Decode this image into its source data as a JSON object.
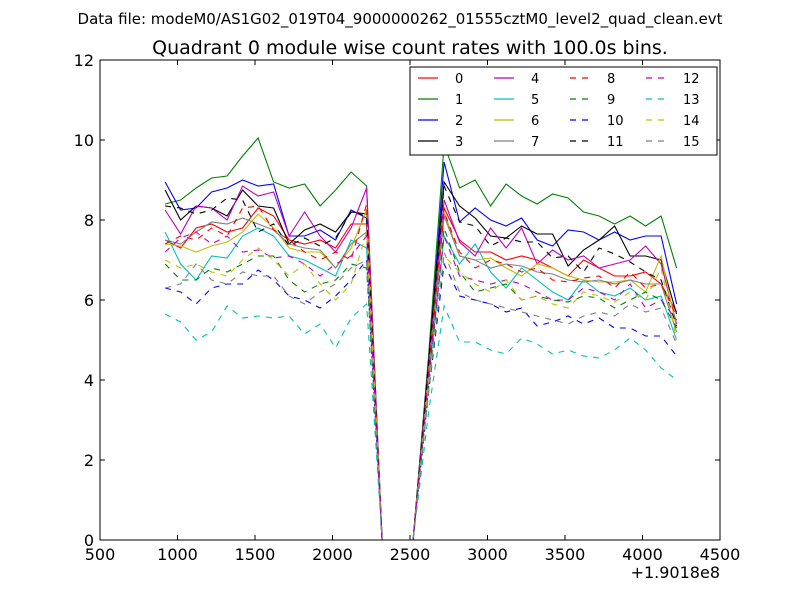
{
  "suptitle": "Data file: modeM0/AS1G02_019T04_9000000262_01555cztM0_level2_quad_clean.evt",
  "chart_data": {
    "type": "line",
    "title": "Quadrant 0 module wise count rates with 100.0s bins.",
    "xlabel": "",
    "ylabel": "",
    "x_offset_label": "+1.9018e8",
    "xlim": [
      500,
      4500
    ],
    "ylim": [
      0,
      12
    ],
    "xticks": [
      500,
      1000,
      1500,
      2000,
      2500,
      3000,
      3500,
      4000,
      4500
    ],
    "yticks": [
      0,
      2,
      4,
      6,
      8,
      10,
      12
    ],
    "grid": false,
    "legend": {
      "placement": "top-right",
      "columns": 4
    },
    "x": [
      920,
      1020,
      1120,
      1220,
      1320,
      1420,
      1520,
      1620,
      1720,
      1820,
      1920,
      2020,
      2120,
      2220,
      2320,
      2420,
      2520,
      2620,
      2720,
      2820,
      2920,
      3020,
      3120,
      3220,
      3320,
      3420,
      3520,
      3620,
      3720,
      3820,
      3920,
      4020,
      4120,
      4220
    ],
    "series": [
      {
        "name": "0",
        "color": "#ff0000",
        "dash": "solid",
        "values": [
          7.5,
          7.3,
          7.8,
          7.9,
          7.7,
          7.8,
          8.3,
          8.1,
          7.5,
          7.4,
          7.5,
          7.3,
          7.9,
          7.9,
          0,
          0,
          0,
          4.2,
          8.3,
          7.5,
          7.2,
          7.2,
          7.0,
          7.1,
          7.0,
          6.8,
          6.6,
          7.0,
          6.8,
          6.6,
          6.6,
          6.7,
          6.4,
          5.7
        ]
      },
      {
        "name": "1",
        "color": "#008000",
        "dash": "solid",
        "values": [
          8.4,
          8.5,
          8.8,
          9.05,
          9.1,
          9.6,
          10.05,
          8.95,
          8.8,
          8.9,
          8.35,
          8.75,
          9.2,
          8.85,
          0,
          0,
          0,
          4.6,
          9.9,
          8.8,
          9.0,
          8.35,
          8.9,
          8.6,
          8.4,
          8.65,
          8.55,
          8.2,
          8.1,
          7.9,
          8.1,
          7.85,
          8.1,
          6.8
        ]
      },
      {
        "name": "2",
        "color": "#0000ff",
        "dash": "solid",
        "values": [
          8.95,
          8.25,
          8.3,
          8.7,
          8.8,
          9.0,
          8.85,
          8.9,
          7.6,
          7.6,
          7.75,
          7.5,
          8.25,
          8.05,
          0,
          0,
          0,
          4.3,
          9.45,
          7.95,
          8.3,
          8.0,
          7.85,
          8.05,
          7.5,
          7.35,
          7.75,
          7.7,
          7.5,
          7.7,
          7.5,
          7.6,
          7.6,
          5.9
        ]
      },
      {
        "name": "3",
        "color": "#000000",
        "dash": "solid",
        "values": [
          8.75,
          8.0,
          8.35,
          8.3,
          8.1,
          8.75,
          8.35,
          8.3,
          7.4,
          7.75,
          7.9,
          7.7,
          8.2,
          8.15,
          0,
          0,
          0,
          4.5,
          8.95,
          8.35,
          8.05,
          7.6,
          7.55,
          7.85,
          7.65,
          7.65,
          6.85,
          7.25,
          7.5,
          7.85,
          7.1,
          7.1,
          7.0,
          5.65
        ]
      },
      {
        "name": "4",
        "color": "#bf00bf",
        "dash": "solid",
        "values": [
          8.25,
          7.65,
          8.35,
          8.3,
          8.0,
          8.85,
          8.6,
          8.7,
          7.6,
          8.2,
          7.6,
          7.2,
          7.8,
          8.8,
          0,
          0,
          0,
          4.4,
          8.5,
          7.45,
          7.1,
          7.8,
          7.3,
          7.8,
          6.9,
          7.25,
          7.0,
          7.1,
          6.8,
          6.9,
          7.0,
          7.35,
          6.9,
          5.4
        ]
      },
      {
        "name": "5",
        "color": "#00bfbf",
        "dash": "solid",
        "values": [
          7.7,
          6.9,
          6.5,
          7.1,
          7.05,
          7.6,
          7.8,
          7.6,
          7.1,
          7.0,
          6.8,
          6.6,
          7.5,
          7.3,
          0,
          0,
          0,
          4.0,
          7.6,
          6.9,
          7.4,
          6.7,
          6.3,
          6.8,
          6.5,
          6.2,
          6.0,
          6.5,
          6.2,
          6.1,
          6.3,
          6.0,
          6.1,
          5.0
        ]
      },
      {
        "name": "6",
        "color": "#bfbf00",
        "dash": "solid",
        "values": [
          7.4,
          7.35,
          7.2,
          7.35,
          7.45,
          7.7,
          8.15,
          7.8,
          7.3,
          7.2,
          7.2,
          6.8,
          7.3,
          8.25,
          0,
          0,
          0,
          4.2,
          8.2,
          7.1,
          7.0,
          7.05,
          6.8,
          6.6,
          6.9,
          6.8,
          6.6,
          6.5,
          6.45,
          6.45,
          6.5,
          6.2,
          7.1,
          5.3
        ]
      },
      {
        "name": "7",
        "color": "#808080",
        "dash": "solid",
        "values": [
          7.5,
          7.4,
          7.7,
          7.95,
          7.9,
          8.05,
          7.9,
          7.75,
          7.4,
          7.3,
          7.25,
          6.8,
          7.4,
          7.7,
          0,
          0,
          0,
          4.2,
          8.1,
          7.1,
          7.0,
          6.8,
          6.9,
          6.85,
          6.7,
          6.65,
          6.5,
          6.45,
          6.5,
          6.4,
          6.5,
          6.4,
          6.4,
          5.2
        ]
      },
      {
        "name": "8",
        "color": "#ff0000",
        "dash": "dashed",
        "values": [
          7.4,
          7.6,
          7.5,
          7.8,
          7.6,
          8.3,
          8.35,
          7.75,
          7.5,
          7.2,
          7.0,
          7.2,
          7.0,
          8.4,
          0,
          0,
          0,
          4.2,
          8.2,
          7.2,
          6.8,
          7.0,
          6.9,
          6.7,
          6.8,
          6.5,
          6.45,
          6.55,
          6.6,
          6.3,
          6.7,
          6.3,
          6.4,
          5.6
        ]
      },
      {
        "name": "9",
        "color": "#008000",
        "dash": "dashed",
        "values": [
          6.9,
          6.5,
          6.5,
          6.8,
          6.7,
          6.9,
          7.1,
          7.1,
          6.5,
          6.2,
          6.4,
          6.5,
          6.9,
          6.8,
          0,
          0,
          0,
          3.8,
          7.8,
          6.7,
          6.2,
          6.3,
          6.4,
          6.0,
          6.1,
          6.0,
          5.95,
          6.1,
          6.05,
          5.8,
          6.0,
          6.2,
          6.0,
          5.3
        ]
      },
      {
        "name": "10",
        "color": "#0000ff",
        "dash": "dashed",
        "values": [
          6.3,
          6.2,
          5.9,
          6.3,
          6.4,
          6.4,
          6.75,
          6.5,
          6.1,
          6.0,
          5.8,
          6.1,
          6.5,
          7.0,
          0,
          0,
          0,
          3.7,
          6.9,
          6.1,
          6.0,
          5.9,
          5.7,
          5.8,
          5.35,
          5.45,
          5.6,
          5.4,
          5.55,
          5.3,
          5.3,
          5.1,
          5.1,
          4.6
        ]
      },
      {
        "name": "11",
        "color": "#000000",
        "dash": "dashed",
        "values": [
          8.35,
          8.3,
          8.15,
          8.25,
          8.55,
          8.5,
          7.7,
          7.9,
          7.35,
          7.55,
          7.35,
          7.55,
          8.2,
          8.1,
          0,
          0,
          0,
          4.4,
          8.85,
          7.95,
          7.85,
          7.35,
          7.55,
          7.45,
          7.45,
          7.05,
          7.1,
          6.7,
          7.3,
          7.15,
          6.95,
          6.7,
          6.5,
          5.35
        ]
      },
      {
        "name": "12",
        "color": "#bf00bf",
        "dash": "dashed",
        "values": [
          7.2,
          7.55,
          7.7,
          7.4,
          7.6,
          7.2,
          7.25,
          7.05,
          7.1,
          6.9,
          6.6,
          6.9,
          7.1,
          7.6,
          0,
          0,
          0,
          4.1,
          7.6,
          6.6,
          6.5,
          6.4,
          6.5,
          6.4,
          6.2,
          6.0,
          6.0,
          6.3,
          6.2,
          6.0,
          6.4,
          5.8,
          6.0,
          5.5
        ]
      },
      {
        "name": "13",
        "color": "#00bfbf",
        "dash": "dashed",
        "values": [
          5.65,
          5.45,
          5.0,
          5.2,
          5.85,
          5.55,
          5.6,
          5.55,
          5.6,
          5.15,
          5.4,
          4.8,
          5.55,
          5.9,
          0,
          0,
          0,
          3.2,
          5.85,
          4.95,
          4.95,
          4.75,
          4.65,
          5.05,
          4.9,
          4.65,
          4.75,
          4.6,
          4.55,
          4.75,
          5.05,
          4.75,
          4.3,
          4.0
        ]
      },
      {
        "name": "14",
        "color": "#bfbf00",
        "dash": "dashed",
        "values": [
          7.0,
          6.8,
          6.9,
          6.7,
          6.6,
          7.0,
          7.3,
          7.0,
          6.6,
          6.9,
          6.4,
          6.0,
          6.4,
          7.7,
          0,
          0,
          0,
          3.9,
          7.1,
          6.7,
          6.4,
          6.2,
          6.5,
          6.0,
          6.1,
          5.9,
          5.8,
          6.2,
          6.1,
          5.95,
          6.2,
          6.0,
          6.8,
          5.0
        ]
      },
      {
        "name": "15",
        "color": "#808080",
        "dash": "dashed",
        "values": [
          6.3,
          6.4,
          6.9,
          6.5,
          6.4,
          6.7,
          6.6,
          6.6,
          6.1,
          5.9,
          6.2,
          6.4,
          6.8,
          7.0,
          0,
          0,
          0,
          3.7,
          7.2,
          6.2,
          6.0,
          5.9,
          5.8,
          5.7,
          5.6,
          5.5,
          5.4,
          5.6,
          5.7,
          5.6,
          5.9,
          5.7,
          5.8,
          4.9
        ]
      }
    ]
  }
}
